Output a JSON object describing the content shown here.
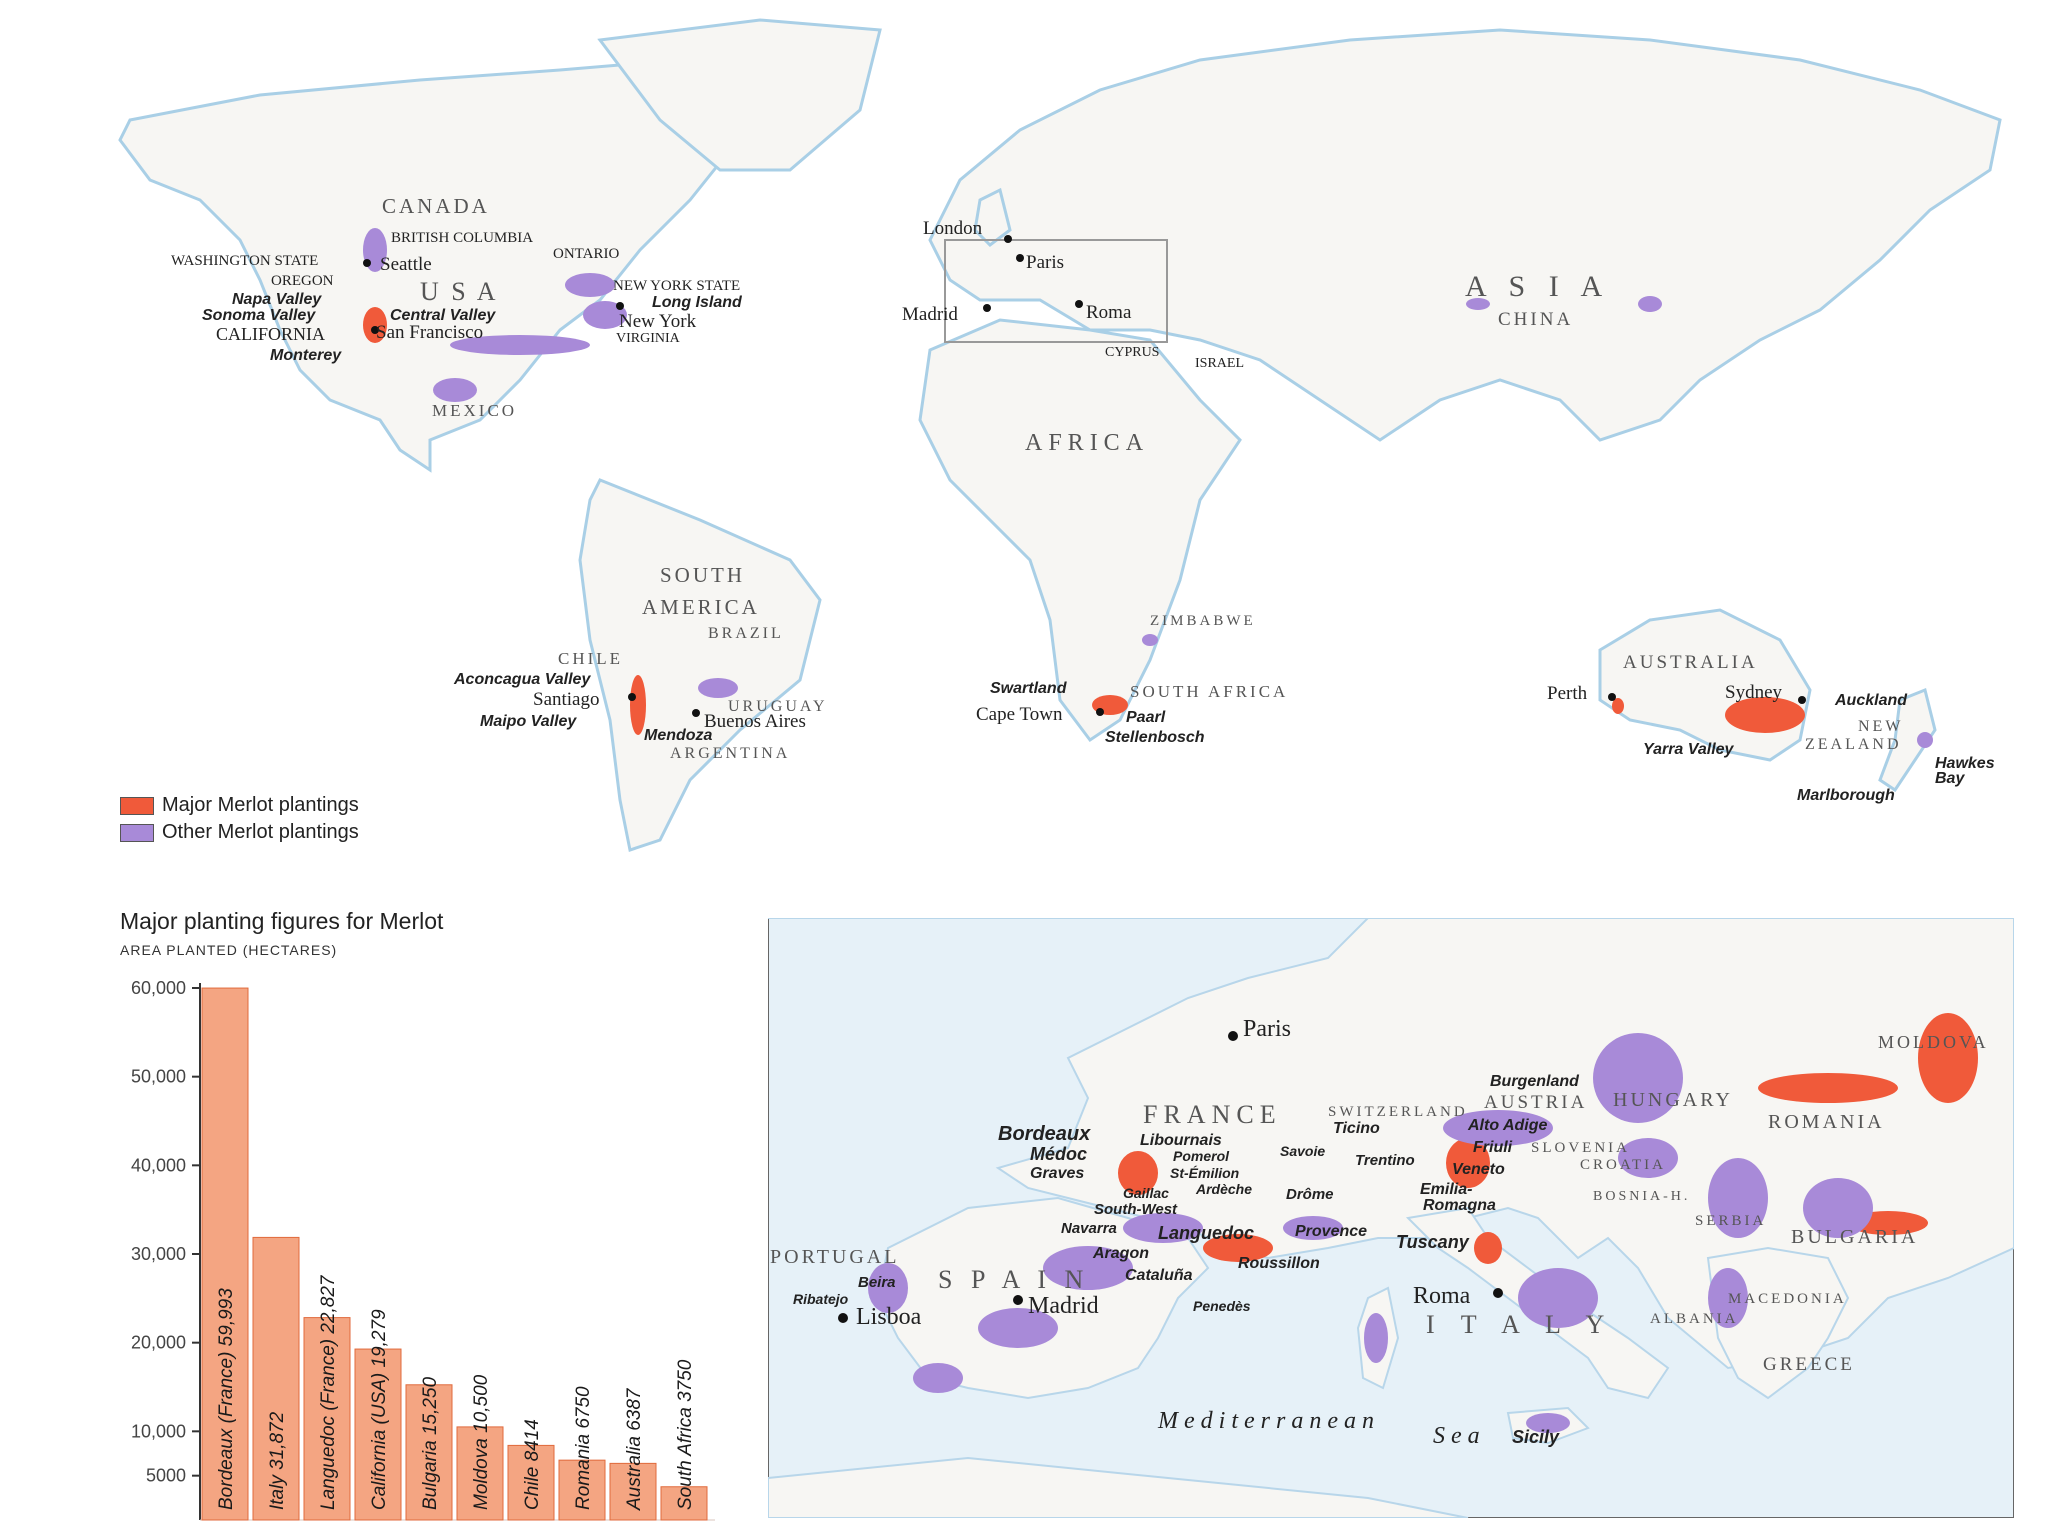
{
  "colors": {
    "sea": "#e6f1f8",
    "land": "#f7f6f3",
    "coast": "#a9cfe6",
    "border": "#c4c4c4",
    "major": "#f05a3a",
    "other": "#a88ad8",
    "bar": "#f4a582",
    "bar_stroke": "#e06a3c"
  },
  "legend": {
    "major_label": "Major Merlot plantings",
    "other_label": "Other Merlot plantings"
  },
  "world_labels": {
    "canada": "CANADA",
    "british_columbia": "BRITISH COLUMBIA",
    "ontario": "ONTARIO",
    "washington_state": "WASHINGTON STATE",
    "seattle": "Seattle",
    "oregon": "OREGON",
    "usa": "U S A",
    "new_york_state": "NEW YORK STATE",
    "long_island": "Long Island",
    "napa_valley": "Napa Valley",
    "sonoma_valley": "Sonoma Valley",
    "central_valley": "Central Valley",
    "new_york": "New York",
    "california": "CALIFORNIA",
    "san_francisco": "San Francisco",
    "virginia": "VIRGINIA",
    "monterey": "Monterey",
    "mexico": "MEXICO",
    "london": "London",
    "paris": "Paris",
    "madrid": "Madrid",
    "roma": "Roma",
    "cyprus": "CYPRUS",
    "israel": "ISRAEL",
    "asia": "A S I A",
    "china": "CHINA",
    "africa": "AFRICA",
    "south_america_1": "SOUTH",
    "south_america_2": "AMERICA",
    "brazil": "BRAZIL",
    "zimbabwe": "ZIMBABWE",
    "chile": "CHILE",
    "aconcagua_valley": "Aconcagua Valley",
    "santiago": "Santiago",
    "maipo_valley": "Maipo Valley",
    "uruguay": "URUGUAY",
    "buenos_aires": "Buenos Aires",
    "mendoza": "Mendoza",
    "argentina": "ARGENTINA",
    "swartland": "Swartland",
    "south_africa": "SOUTH AFRICA",
    "cape_town": "Cape Town",
    "paarl": "Paarl",
    "stellenbosch": "Stellenbosch",
    "australia": "AUSTRALIA",
    "perth": "Perth",
    "sydney": "Sydney",
    "yarra_valley": "Yarra Valley",
    "auckland": "Auckland",
    "new_zealand_1": "NEW",
    "new_zealand_2": "ZEALAND",
    "hawkes_bay_1": "Hawkes",
    "hawkes_bay_2": "Bay",
    "marlborough": "Marlborough"
  },
  "europe_labels": {
    "paris": "Paris",
    "moldova": "MOLDOVA",
    "burgenland": "Burgenland",
    "austria": "AUSTRIA",
    "hungary": "HUNGARY",
    "france": "FRANCE",
    "switzerland": "SWITZERLAND",
    "ticino": "Ticino",
    "alto_adige": "Alto Adige",
    "romania": "ROMANIA",
    "bordeaux": "Bordeaux",
    "libournais": "Libournais",
    "medoc": "Médoc",
    "pomerol": "Pomerol",
    "savoie": "Savoie",
    "trentino": "Trentino",
    "friuli": "Friuli",
    "slovenia": "SLOVENIA",
    "croatia": "CROATIA",
    "graves": "Graves",
    "st_emilion": "St-Émilion",
    "veneto": "Veneto",
    "gaillac": "Gaillac",
    "ardeche": "Ardèche",
    "drome": "Drôme",
    "emilia_romagna_1": "Emilia-",
    "emilia_romagna_2": "Romagna",
    "bosnia": "BOSNIA-H.",
    "south_west": "South-West",
    "navarra": "Navarra",
    "languedoc": "Languedoc",
    "provence": "Provence",
    "serbia": "SERBIA",
    "tuscany": "Tuscany",
    "bulgaria": "BULGARIA",
    "portugal": "PORTUGAL",
    "aragon": "Aragon",
    "roussillon": "Roussillon",
    "spain": "S P A I N",
    "cataluna": "Cataluña",
    "beira": "Beira",
    "ribatejo": "Ribatejo",
    "madrid": "Madrid",
    "roma": "Roma",
    "macedonia": "MACEDONIA",
    "lisboa": "Lisboa",
    "penedes": "Penedès",
    "italy": "I T A L Y",
    "albania": "ALBANIA",
    "greece": "GREECE",
    "mediterranean": "Mediterranean",
    "sea": "Sea",
    "sicily": "Sicily"
  },
  "chart_title": "Major planting figures for Merlot",
  "chart_subtitle": "AREA PLANTED (HECTARES)",
  "chart_data": {
    "type": "bar",
    "categories": [
      "Bordeaux (France)",
      "Italy",
      "Languedoc (France)",
      "California (USA)",
      "Bulgaria",
      "Moldova",
      "Chile",
      "Romania",
      "Australia",
      "South Africa"
    ],
    "bar_labels": [
      "Bordeaux (France) 59,993",
      "Italy 31,872",
      "Languedoc (France) 22,827",
      "California (USA) 19,279",
      "Bulgaria 15,250",
      "Moldova 10,500",
      "Chile 8414",
      "Romania 6750",
      "Australia 6387",
      "South Africa 3750"
    ],
    "values": [
      59993,
      31872,
      22827,
      19279,
      15250,
      10500,
      8414,
      6750,
      6387,
      3750
    ],
    "ylabel": "AREA PLANTED (HECTARES)",
    "ylim": [
      0,
      60000
    ],
    "yticks": [
      5000,
      10000,
      20000,
      30000,
      40000,
      50000,
      60000
    ],
    "ytick_labels": [
      "5000",
      "10,000",
      "20,000",
      "30,000",
      "40,000",
      "50,000",
      "60,000"
    ],
    "grid": false,
    "legend": "none"
  }
}
